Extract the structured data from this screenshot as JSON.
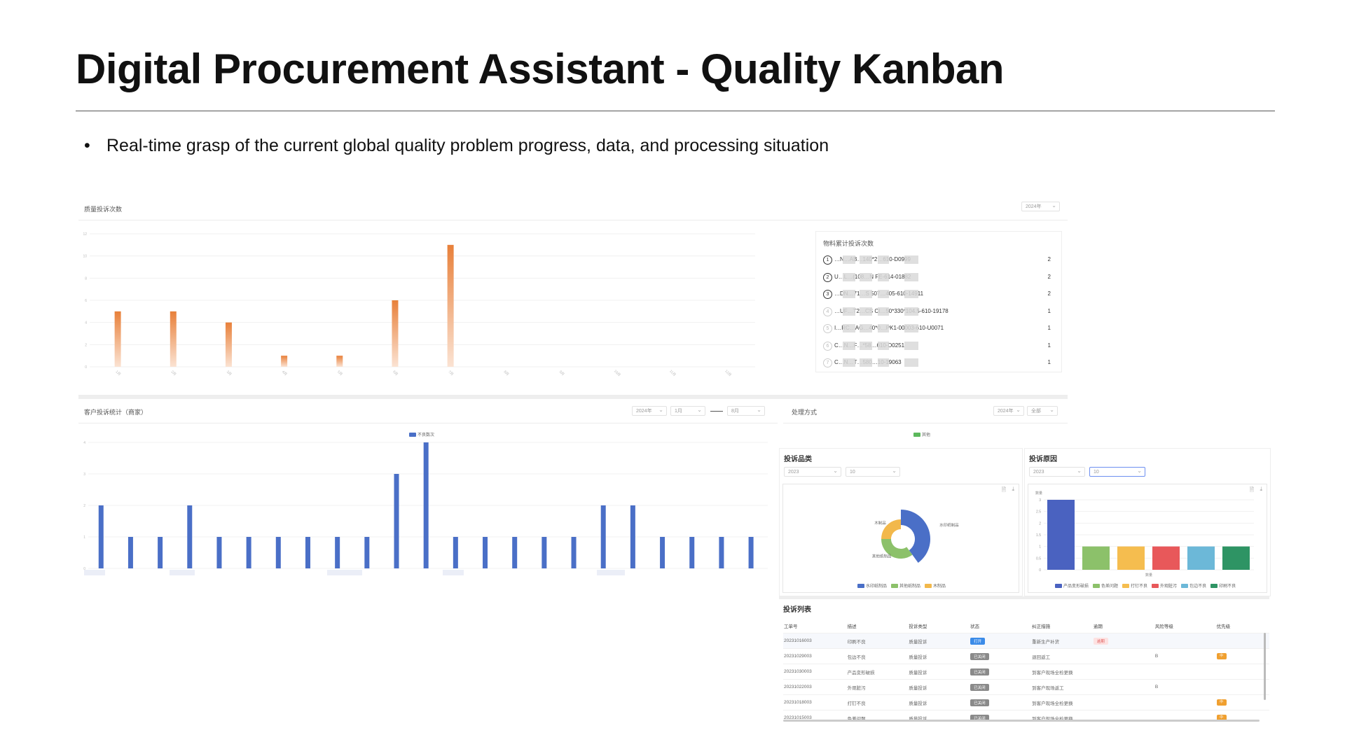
{
  "title": "Digital Procurement Assistant - Quality Kanban",
  "bullet": "Real-time grasp of the current global quality problem progress, data, and processing situation",
  "quality_panel": {
    "title": "质量投诉次数",
    "year_select": "2024年",
    "chart_data": {
      "type": "bar",
      "categories": [
        "1月",
        "2月",
        "3月",
        "4月",
        "5月",
        "6月",
        "7月",
        "8月",
        "9月",
        "10月",
        "11月",
        "12月"
      ],
      "values": [
        5,
        5,
        4,
        1,
        1,
        6,
        11,
        0,
        0,
        0,
        0,
        0
      ],
      "yticks": [
        "12",
        "10",
        "8",
        "6",
        "4",
        "2",
        "0"
      ],
      "ylim": [
        0,
        12
      ],
      "color": "#e8803a"
    }
  },
  "ranking": {
    "title": "物料累计投诉次数",
    "items": [
      {
        "rank": "1",
        "name": "…N…AB…140*2…610-D0999",
        "count": "2"
      },
      {
        "rank": "2",
        "name": "U…L…(108…N FE-614-01882",
        "count": "2"
      },
      {
        "rank": "3",
        "name": "…DN…71…S 507…405-610-14911",
        "count": "2"
      },
      {
        "rank": "4",
        "name": "…UF…T2…CS CI…50*330*104.5-610-19178",
        "count": "1"
      },
      {
        "rank": "5",
        "name": "I…RC…AG…40*0…PK1-00003-610-U0071",
        "count": "1"
      },
      {
        "rank": "6",
        "name": "C…N…F…*58…610-D0251",
        "count": "1"
      },
      {
        "rank": "7",
        "name": "C…N…T…580…10-19063",
        "count": "1"
      }
    ]
  },
  "customer_panel": {
    "title": "客户投诉统计（商家）",
    "sel_year": "2024年",
    "sel_from": "1月",
    "sel_to": "8月",
    "legend": "不良数次",
    "chart_data": {
      "type": "bar",
      "values": [
        2,
        1,
        1,
        2,
        1,
        1,
        1,
        1,
        1,
        1,
        3,
        4,
        1,
        1,
        1,
        1,
        1,
        2,
        2,
        1,
        1,
        1,
        1
      ],
      "yticks": [
        "4",
        "3",
        "2",
        "1",
        "0"
      ],
      "ylim": [
        0,
        4
      ],
      "color": "#4a6fc7"
    }
  },
  "handling_panel": {
    "title": "处理方式",
    "sel_year": "2024年",
    "sel_all": "全部",
    "legend": "其他"
  },
  "category_panel": {
    "title": "投诉品类",
    "sel_year": "2023",
    "sel_month": "10",
    "chart_data": {
      "type": "pie",
      "labels": [
        "水印纸制品",
        "其他纸制品",
        "木制品"
      ],
      "values": [
        40,
        35,
        25
      ],
      "colors": [
        "#4a6fc7",
        "#8cc16a",
        "#f2b84b"
      ]
    },
    "legend": [
      "水印纸制品",
      "其他纸制品",
      "木制品"
    ]
  },
  "reason_panel": {
    "title": "投诉原因",
    "sel_year": "2023",
    "sel_month": "10",
    "ylabel": "数量",
    "xlabel": "数量",
    "chart_data": {
      "type": "bar",
      "categories": [
        "产品变形破损",
        "色差问题",
        "打钉不良",
        "外观脏污",
        "包边不良",
        "印刷不良"
      ],
      "values": [
        3,
        1,
        1,
        1,
        1,
        1
      ],
      "colors": [
        "#4a62c0",
        "#8cc16a",
        "#f5bd4f",
        "#e8585a",
        "#6cb8d8",
        "#2e9464"
      ],
      "yticks": [
        "3",
        "2.5",
        "2",
        "1.5",
        "1",
        "0.5",
        "0"
      ],
      "ylim": [
        0,
        3
      ]
    }
  },
  "complaint_list": {
    "title": "投诉列表",
    "headers": [
      "工单号",
      "描述",
      "投诉类型",
      "状态",
      "纠正措施",
      "逾期",
      "风险等级",
      "优先级"
    ],
    "rows": [
      {
        "id": "20231016003",
        "desc": "印刷不良",
        "type": "质量投诉",
        "status": "打开",
        "action": "重新生产补货",
        "overdue": "逾期",
        "risk": "",
        "pri": ""
      },
      {
        "id": "20231029003",
        "desc": "包边不良",
        "type": "质量投诉",
        "status": "已关闭",
        "action": "退回返工",
        "overdue": "",
        "risk": "B",
        "pri": "中"
      },
      {
        "id": "20231030003",
        "desc": "产品变形破损",
        "type": "质量投诉",
        "status": "已关闭",
        "action": "到客户现场全检更换",
        "overdue": "",
        "risk": "",
        "pri": ""
      },
      {
        "id": "20231022003",
        "desc": "外观脏污",
        "type": "质量投诉",
        "status": "已关闭",
        "action": "到客户现场返工",
        "overdue": "",
        "risk": "B",
        "pri": ""
      },
      {
        "id": "20231018003",
        "desc": "打钉不良",
        "type": "质量投诉",
        "status": "已关闭",
        "action": "到客户现场全检更换",
        "overdue": "",
        "risk": "",
        "pri": "中"
      },
      {
        "id": "20231015003",
        "desc": "色差问题",
        "type": "质量投诉",
        "status": "已关闭",
        "action": "到客户现场全检更换",
        "overdue": "",
        "risk": "",
        "pri": "中"
      }
    ]
  },
  "colors": {
    "orange": "#e8803a",
    "blue": "#4a6fc7",
    "open": "#3b8be8",
    "closed": "#8a8a8a"
  }
}
